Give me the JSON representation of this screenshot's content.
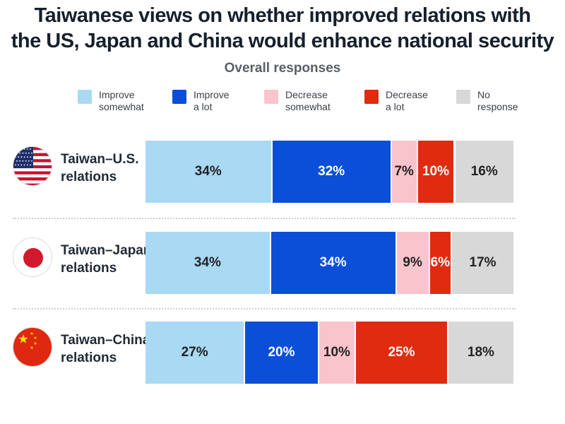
{
  "title_line1": "Taiwanese views on whether improved relations with",
  "title_line2": "the US, Japan and China would enhance national security",
  "subtitle": "Overall responses",
  "colors": {
    "improve_somewhat": "#a9d9f3",
    "improve_a_lot": "#0b4fd8",
    "decrease_somewhat": "#f9c4cc",
    "decrease_a_lot": "#e12b10",
    "no_response": "#d8d8d8"
  },
  "legend": [
    {
      "label": "Improve\nsomewhat",
      "color": "#a9d9f3"
    },
    {
      "label": "Improve\na lot",
      "color": "#0b4fd8"
    },
    {
      "label": "Decrease\nsomewhat",
      "color": "#f9c4cc"
    },
    {
      "label": "Decrease\na lot",
      "color": "#e12b10"
    },
    {
      "label": "No\nresponse",
      "color": "#d8d8d8"
    }
  ],
  "chart_data": {
    "type": "bar",
    "orientation": "horizontal-stacked",
    "title": "Taiwanese views on whether improved relations with the US, Japan and China would enhance national security",
    "subtitle": "Overall responses",
    "unit": "%",
    "categories": [
      "Taiwan–U.S.\nrelations",
      "Taiwan–Japan\nrelations",
      "Taiwan–China\nrelations"
    ],
    "flags": [
      "us-flag-icon",
      "japan-flag-icon",
      "china-flag-icon"
    ],
    "series": [
      {
        "name": "Improve somewhat",
        "color": "#a9d9f3",
        "values": [
          34,
          34,
          27
        ]
      },
      {
        "name": "Improve a lot",
        "color": "#0b4fd8",
        "values": [
          32,
          34,
          20
        ]
      },
      {
        "name": "Decrease somewhat",
        "color": "#f9c4cc",
        "values": [
          7,
          9,
          10
        ]
      },
      {
        "name": "Decrease a lot",
        "color": "#e12b10",
        "values": [
          10,
          6,
          25
        ]
      },
      {
        "name": "No response",
        "color": "#d8d8d8",
        "values": [
          16,
          17,
          18
        ]
      }
    ],
    "legend_position": "top",
    "grid": false
  }
}
